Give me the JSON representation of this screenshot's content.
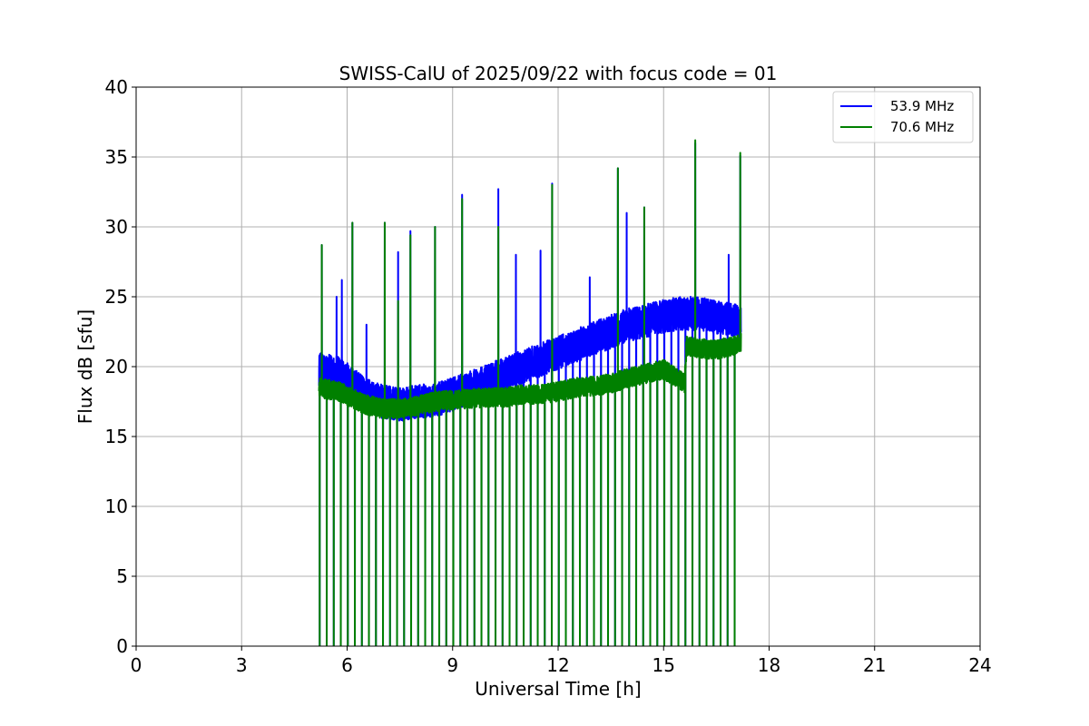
{
  "chart_data": {
    "type": "line",
    "title": "SWISS-CalU of 2025/09/22 with focus code = 01",
    "xlabel": "Universal Time [h]",
    "ylabel": "Flux dB [sfu]",
    "xlim": [
      0,
      24
    ],
    "ylim": [
      0,
      40
    ],
    "xticks": [
      0,
      3,
      6,
      9,
      12,
      15,
      18,
      21,
      24
    ],
    "yticks": [
      0,
      5,
      10,
      15,
      20,
      25,
      30,
      35,
      40
    ],
    "grid": true,
    "legend_position": "top-right",
    "data_range_hours": [
      5.2,
      17.2
    ],
    "calibration_dips": {
      "first_hour": 5.22,
      "interval_hours": 0.2,
      "count": 60,
      "min_value": 0
    },
    "series": [
      {
        "name": "53.9 MHz",
        "color": "#0000ff",
        "baseline": {
          "x": [
            5.2,
            5.8,
            6.5,
            7.0,
            7.5,
            8.0,
            8.5,
            9.0,
            9.5,
            10.0,
            10.5,
            11.0,
            11.5,
            12.0,
            12.5,
            13.0,
            13.5,
            14.0,
            14.5,
            15.0,
            15.5,
            16.0,
            16.5,
            17.0,
            17.2
          ],
          "y": [
            19.8,
            19.5,
            18.0,
            17.5,
            17.3,
            17.5,
            17.6,
            18.0,
            18.5,
            19.0,
            19.5,
            20.0,
            20.5,
            21.0,
            21.5,
            22.0,
            22.5,
            23.0,
            23.3,
            23.6,
            23.8,
            23.8,
            23.5,
            23.3,
            23.2
          ]
        },
        "noise_amplitude": 1.2,
        "spikes": [
          {
            "x": 5.28,
            "y": 28.7
          },
          {
            "x": 5.7,
            "y": 25.0
          },
          {
            "x": 5.85,
            "y": 26.2
          },
          {
            "x": 6.15,
            "y": 30.3
          },
          {
            "x": 6.55,
            "y": 23.0
          },
          {
            "x": 7.07,
            "y": 30.3
          },
          {
            "x": 7.45,
            "y": 28.2
          },
          {
            "x": 7.8,
            "y": 29.7
          },
          {
            "x": 8.5,
            "y": 30.0
          },
          {
            "x": 9.27,
            "y": 32.3
          },
          {
            "x": 10.3,
            "y": 32.7
          },
          {
            "x": 10.8,
            "y": 28.0
          },
          {
            "x": 11.5,
            "y": 28.3
          },
          {
            "x": 11.83,
            "y": 33.1
          },
          {
            "x": 12.9,
            "y": 26.4
          },
          {
            "x": 13.7,
            "y": 34.2
          },
          {
            "x": 13.95,
            "y": 31.0
          },
          {
            "x": 14.45,
            "y": 31.4
          },
          {
            "x": 15.9,
            "y": 36.0
          },
          {
            "x": 16.85,
            "y": 28.0
          },
          {
            "x": 17.18,
            "y": 35.1
          }
        ]
      },
      {
        "name": "70.6 MHz",
        "color": "#008000",
        "baseline": {
          "x": [
            5.2,
            5.8,
            6.5,
            7.0,
            7.5,
            8.0,
            8.5,
            9.0,
            9.5,
            10.0,
            10.5,
            11.0,
            11.5,
            12.0,
            12.5,
            13.0,
            13.5,
            14.0,
            14.5,
            15.0,
            15.3,
            15.6,
            15.65,
            16.0,
            16.5,
            17.0,
            17.2
          ],
          "y": [
            18.5,
            18.2,
            17.3,
            17.0,
            17.0,
            17.2,
            17.5,
            17.6,
            17.7,
            17.8,
            17.8,
            18.0,
            18.0,
            18.2,
            18.5,
            18.6,
            18.8,
            19.2,
            19.5,
            19.8,
            19.3,
            18.8,
            21.5,
            21.3,
            21.2,
            21.5,
            21.8
          ]
        },
        "noise_amplitude": 0.7,
        "spikes": [
          {
            "x": 5.28,
            "y": 28.7
          },
          {
            "x": 6.15,
            "y": 30.3
          },
          {
            "x": 7.07,
            "y": 30.3
          },
          {
            "x": 7.45,
            "y": 24.7
          },
          {
            "x": 7.8,
            "y": 29.4
          },
          {
            "x": 8.5,
            "y": 30.0
          },
          {
            "x": 9.27,
            "y": 32.0
          },
          {
            "x": 10.3,
            "y": 30.0
          },
          {
            "x": 11.83,
            "y": 33.0
          },
          {
            "x": 13.7,
            "y": 34.2
          },
          {
            "x": 14.45,
            "y": 31.4
          },
          {
            "x": 15.9,
            "y": 36.2
          },
          {
            "x": 17.18,
            "y": 35.3
          }
        ]
      }
    ]
  }
}
